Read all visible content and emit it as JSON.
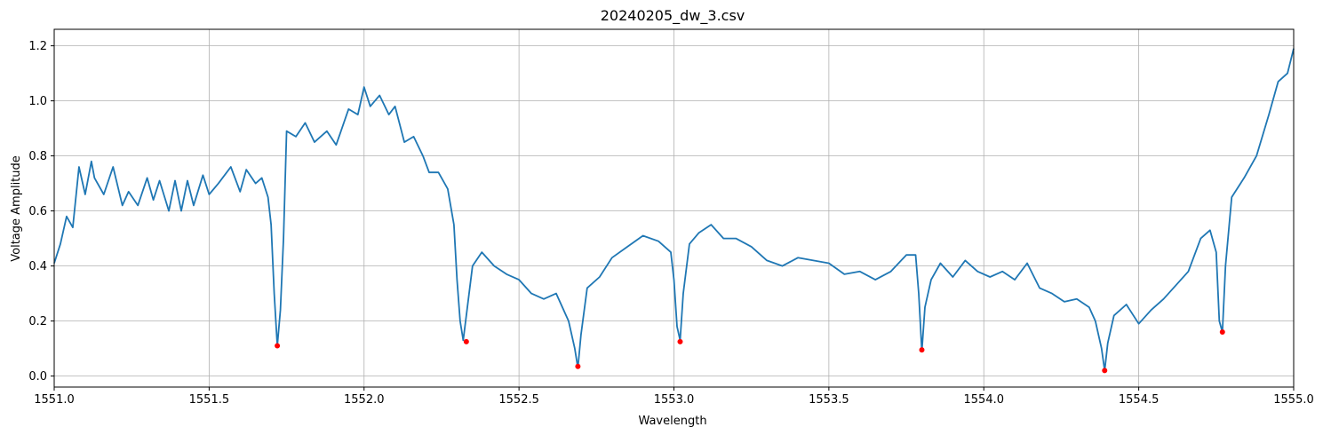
{
  "chart_data": {
    "type": "line",
    "title": "20240205_dw_3.csv",
    "xlabel": "Wavelength",
    "ylabel": "Voltage Amplitude",
    "xlim": [
      1551.0,
      1555.0
    ],
    "ylim": [
      -0.04,
      1.26
    ],
    "grid": true,
    "x_ticks": [
      "1551.0",
      "1551.5",
      "1552.0",
      "1552.5",
      "1553.0",
      "1553.5",
      "1554.0",
      "1554.5",
      "1555.0"
    ],
    "y_ticks": [
      "0.0",
      "0.2",
      "0.4",
      "0.6",
      "0.8",
      "1.0",
      "1.2"
    ],
    "line_color": "#1f77b4",
    "marker_color": "#ff0000",
    "series": [
      {
        "x": [
          1551.0,
          1551.02,
          1551.04,
          1551.06,
          1551.08,
          1551.1,
          1551.12,
          1551.13,
          1551.16,
          1551.19,
          1551.22,
          1551.24,
          1551.27,
          1551.3,
          1551.32,
          1551.34,
          1551.37,
          1551.39,
          1551.41,
          1551.43,
          1551.45,
          1551.48,
          1551.5,
          1551.53,
          1551.57,
          1551.6,
          1551.62,
          1551.65,
          1551.67,
          1551.69,
          1551.7,
          1551.71,
          1551.72,
          1551.73,
          1551.74,
          1551.75,
          1551.78,
          1551.81,
          1551.84,
          1551.88,
          1551.91,
          1551.95,
          1551.98,
          1552.0,
          1552.02,
          1552.05,
          1552.08,
          1552.1,
          1552.13,
          1552.16,
          1552.19,
          1552.21,
          1552.24,
          1552.27,
          1552.29,
          1552.3,
          1552.31,
          1552.32,
          1552.33,
          1552.35,
          1552.38,
          1552.42,
          1552.46,
          1552.5,
          1552.54,
          1552.58,
          1552.62,
          1552.66,
          1552.68,
          1552.69,
          1552.7,
          1552.72,
          1552.76,
          1552.8,
          1552.85,
          1552.9,
          1552.95,
          1552.99,
          1553.0,
          1553.01,
          1553.02,
          1553.03,
          1553.05,
          1553.08,
          1553.12,
          1553.16,
          1553.2,
          1553.25,
          1553.3,
          1553.35,
          1553.4,
          1553.45,
          1553.5,
          1553.55,
          1553.6,
          1553.65,
          1553.7,
          1553.75,
          1553.78,
          1553.79,
          1553.8,
          1553.81,
          1553.83,
          1553.86,
          1553.9,
          1553.94,
          1553.98,
          1554.02,
          1554.06,
          1554.1,
          1554.14,
          1554.18,
          1554.22,
          1554.26,
          1554.3,
          1554.34,
          1554.36,
          1554.38,
          1554.39,
          1554.4,
          1554.42,
          1554.46,
          1554.5,
          1554.54,
          1554.58,
          1554.62,
          1554.66,
          1554.7,
          1554.73,
          1554.75,
          1554.76,
          1554.77,
          1554.78,
          1554.8,
          1554.84,
          1554.88,
          1554.92,
          1554.95,
          1554.98,
          1555.0
        ],
        "y": [
          0.41,
          0.48,
          0.58,
          0.54,
          0.76,
          0.66,
          0.78,
          0.72,
          0.66,
          0.76,
          0.62,
          0.67,
          0.62,
          0.72,
          0.64,
          0.71,
          0.6,
          0.71,
          0.6,
          0.71,
          0.62,
          0.73,
          0.66,
          0.7,
          0.76,
          0.67,
          0.75,
          0.7,
          0.72,
          0.65,
          0.55,
          0.3,
          0.11,
          0.24,
          0.5,
          0.89,
          0.87,
          0.92,
          0.85,
          0.89,
          0.84,
          0.97,
          0.95,
          1.05,
          0.98,
          1.02,
          0.95,
          0.98,
          0.85,
          0.87,
          0.8,
          0.74,
          0.74,
          0.68,
          0.55,
          0.35,
          0.2,
          0.13,
          0.22,
          0.4,
          0.45,
          0.4,
          0.37,
          0.35,
          0.3,
          0.28,
          0.3,
          0.2,
          0.1,
          0.03,
          0.15,
          0.32,
          0.36,
          0.43,
          0.47,
          0.51,
          0.49,
          0.45,
          0.35,
          0.18,
          0.13,
          0.3,
          0.48,
          0.52,
          0.55,
          0.5,
          0.5,
          0.47,
          0.42,
          0.4,
          0.43,
          0.42,
          0.41,
          0.37,
          0.38,
          0.35,
          0.38,
          0.44,
          0.44,
          0.3,
          0.09,
          0.25,
          0.35,
          0.41,
          0.36,
          0.42,
          0.38,
          0.36,
          0.38,
          0.35,
          0.41,
          0.32,
          0.3,
          0.27,
          0.28,
          0.25,
          0.2,
          0.1,
          0.02,
          0.12,
          0.22,
          0.26,
          0.19,
          0.24,
          0.28,
          0.33,
          0.38,
          0.5,
          0.53,
          0.45,
          0.2,
          0.16,
          0.4,
          0.65,
          0.72,
          0.8,
          0.95,
          1.07,
          1.1,
          1.19
        ]
      }
    ],
    "minima": {
      "x": [
        1551.72,
        1552.33,
        1552.69,
        1553.02,
        1553.8,
        1554.39,
        1554.77
      ],
      "y": [
        0.11,
        0.125,
        0.035,
        0.125,
        0.095,
        0.02,
        0.16
      ]
    }
  }
}
